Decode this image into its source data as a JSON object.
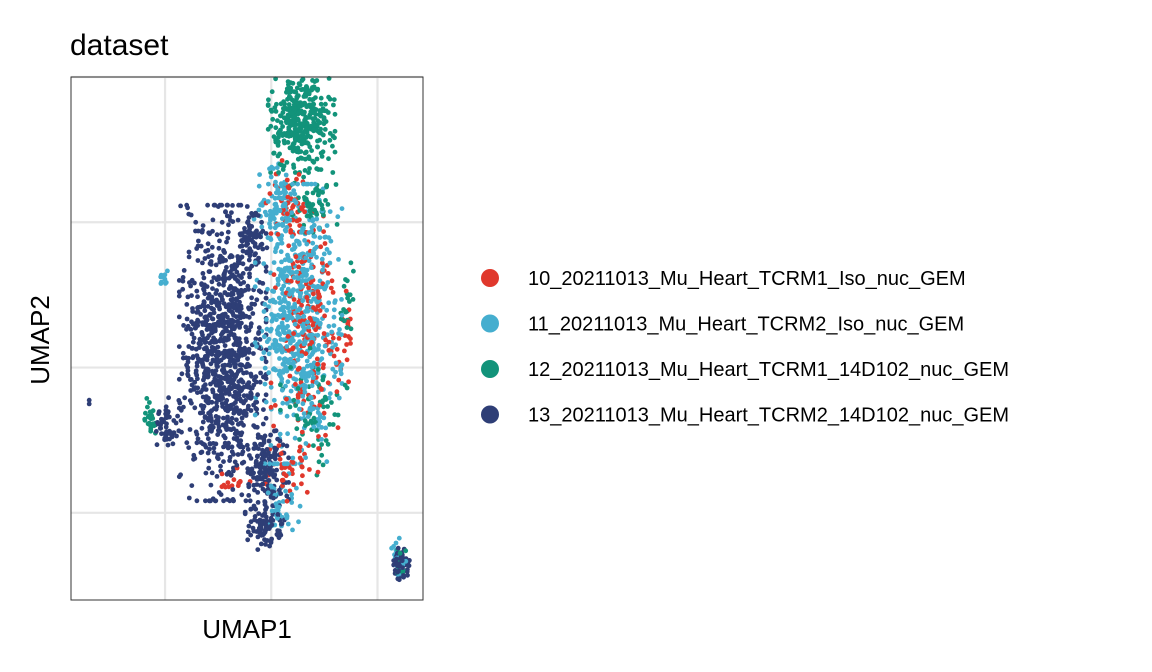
{
  "chart_data": {
    "type": "scatter",
    "title": "dataset",
    "xlabel": "UMAP1",
    "ylabel": "UMAP2",
    "grid": true,
    "x_ticks_labeled": false,
    "y_ticks_labeled": false,
    "legend_position": "right",
    "series": [
      {
        "name": "10_20211013_Mu_Heart_TCRM1_Iso_nuc_GEM",
        "color": "#E0382C",
        "clusters": [
          {
            "cx": 0.6,
            "cy": 0.5,
            "rx": 0.55,
            "ry": 1.5,
            "n": 170
          },
          {
            "cx": 0.3,
            "cy": 2.3,
            "rx": 0.35,
            "ry": 0.5,
            "n": 50
          },
          {
            "cx": 0.3,
            "cy": -1.4,
            "rx": 0.5,
            "ry": 0.4,
            "n": 40
          },
          {
            "cx": -0.6,
            "cy": -1.6,
            "rx": 0.3,
            "ry": 0.2,
            "n": 15
          },
          {
            "cx": 1.25,
            "cy": 0.5,
            "rx": 0.1,
            "ry": 0.8,
            "n": 15
          }
        ]
      },
      {
        "name": "11_20211013_Mu_Heart_TCRM2_Iso_nuc_GEM",
        "color": "#45AECF",
        "clusters": [
          {
            "cx": 0.45,
            "cy": 0.6,
            "rx": 0.65,
            "ry": 1.75,
            "n": 620
          },
          {
            "cx": 0.1,
            "cy": 2.2,
            "rx": 0.35,
            "ry": 0.55,
            "n": 90
          },
          {
            "cx": 0.15,
            "cy": -1.9,
            "rx": 0.3,
            "ry": 0.4,
            "n": 40
          },
          {
            "cx": 2.1,
            "cy": -2.6,
            "rx": 0.12,
            "ry": 0.35,
            "n": 25
          },
          {
            "cx": -1.75,
            "cy": 1.25,
            "rx": 0.12,
            "ry": 0.2,
            "n": 10
          }
        ]
      },
      {
        "name": "12_20211013_Mu_Heart_TCRM1_14D102_nuc_GEM",
        "color": "#12937A",
        "clusters": [
          {
            "cx": 0.5,
            "cy": 3.4,
            "rx": 0.5,
            "ry": 0.65,
            "n": 380
          },
          {
            "cx": 0.7,
            "cy": 2.3,
            "rx": 0.35,
            "ry": 0.4,
            "n": 60
          },
          {
            "cx": 0.7,
            "cy": -0.6,
            "rx": 0.5,
            "ry": 0.8,
            "n": 60
          },
          {
            "cx": -2.0,
            "cy": -0.7,
            "rx": 0.1,
            "ry": 0.25,
            "n": 25
          },
          {
            "cx": 1.25,
            "cy": 1.0,
            "rx": 0.1,
            "ry": 0.6,
            "n": 20
          },
          {
            "cx": 2.15,
            "cy": -2.6,
            "rx": 0.1,
            "ry": 0.2,
            "n": 10
          }
        ]
      },
      {
        "name": "13_20211013_Mu_Heart_TCRM2_14D102_nuc_GEM",
        "color": "#2E3E76",
        "clusters": [
          {
            "cx": -0.8,
            "cy": 0.2,
            "rx": 0.65,
            "ry": 1.85,
            "n": 1000
          },
          {
            "cx": -0.1,
            "cy": -1.4,
            "rx": 0.35,
            "ry": 0.5,
            "n": 150
          },
          {
            "cx": -0.1,
            "cy": -2.2,
            "rx": 0.3,
            "ry": 0.3,
            "n": 80
          },
          {
            "cx": 2.15,
            "cy": -2.7,
            "rx": 0.12,
            "ry": 0.2,
            "n": 70
          },
          {
            "cx": -1.7,
            "cy": -0.8,
            "rx": 0.2,
            "ry": 0.35,
            "n": 50
          },
          {
            "cx": -0.3,
            "cy": 1.8,
            "rx": 0.25,
            "ry": 0.4,
            "n": 60
          }
        ],
        "points": [
          {
            "x": -3.0,
            "y": -0.5
          },
          {
            "x": -3.0,
            "y": -0.45
          }
        ]
      }
    ],
    "xlim": [
      -3.3,
      2.5
    ],
    "ylim": [
      -3.2,
      4.0
    ],
    "grid_x": [
      -1.75,
      0.0,
      1.75
    ],
    "grid_y": [
      -2.0,
      0.0,
      2.0,
      4.0
    ]
  }
}
